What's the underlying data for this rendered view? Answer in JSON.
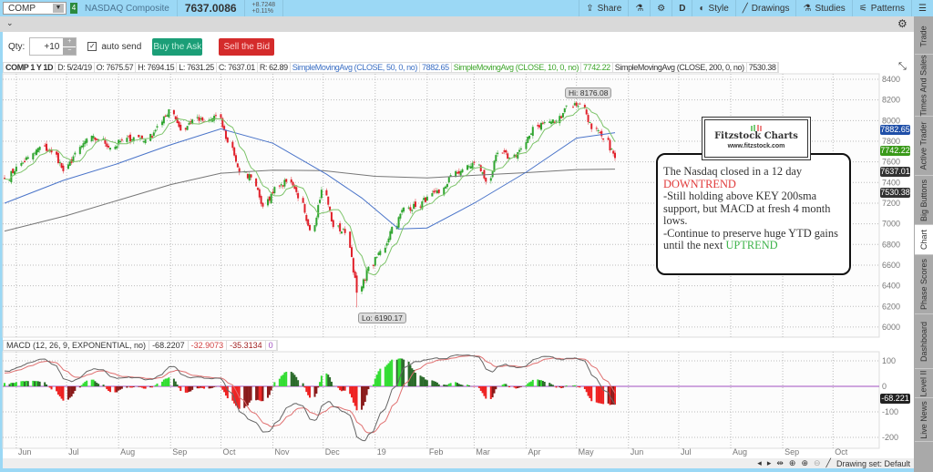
{
  "topbar": {
    "symbol": "COMP",
    "name": "NASDAQ Composite",
    "last": "7637.0086",
    "change": "+8.7248",
    "change_pct": "+0.11%",
    "tools": [
      {
        "label": "Share",
        "icon": "share-icon"
      },
      {
        "label": "",
        "icon": "flask-icon"
      },
      {
        "label": "",
        "icon": "gear-icon"
      },
      {
        "label": "D",
        "icon": "timeframe"
      },
      {
        "label": "Style",
        "icon": "style-icon"
      },
      {
        "label": "Drawings",
        "icon": "pencil-icon"
      },
      {
        "label": "Studies",
        "icon": "flask-icon"
      },
      {
        "label": "Patterns",
        "icon": "patterns-icon"
      },
      {
        "label": "☰",
        "icon": "menu-icon"
      }
    ]
  },
  "trade": {
    "qty_label": "Qty:",
    "qty": "+10",
    "auto_send": "auto send",
    "buy": "Buy the Ask",
    "sell": "Sell the Bid"
  },
  "study_header": {
    "title": "COMP 1 Y 1D",
    "date": "D: 5/24/19",
    "open": "O: 7675.57",
    "high": "H: 7694.15",
    "low": "L: 7631.25",
    "close": "C: 7637.01",
    "range": "R: 62.89",
    "sma50_label": "SimpleMovingAvg (CLOSE, 50, 0, no)",
    "sma50": "7882.65",
    "sma10_label": "SimpleMovingAvg (CLOSE, 10, 0, no)",
    "sma10": "7742.22",
    "sma200_label": "SimpleMovingAvg (CLOSE, 200, 0, no)",
    "sma200": "7530.38"
  },
  "macd_header": {
    "label": "MACD (12, 26, 9, EXPONENTIAL, no)",
    "value": "-68.2207",
    "avg": "-32.9073",
    "diff": "-35.3134",
    "zero": "0"
  },
  "badges": {
    "sma50": "7882.65",
    "sma10": "7742.22",
    "close": "7637.01",
    "sma200": "7530.38",
    "macd": "-68.221"
  },
  "annotations": {
    "hi": "Hi: 8176.08",
    "lo": "Lo: 6190.17"
  },
  "logo": {
    "title": "Fitzstock Charts",
    "url": "www.fitzstock.com"
  },
  "note": {
    "l1": "The Nasdaq closed in a 12 day ",
    "l1_red": "DOWNTREND",
    "l2": "-Still holding above KEY 200sma support, but MACD at fresh 4 month lows.",
    "l3": "-Continue to preserve huge YTD gains until the next ",
    "l3_green": "UPTREND"
  },
  "sidebar": [
    "Trade",
    "Times And Sales",
    "Active Trader",
    "Big Buttons",
    "Chart",
    "Phase Scores",
    "Dashboard",
    "Level II",
    "Live News"
  ],
  "bottom": {
    "drawing_set": "Drawing set: Default"
  },
  "colors": {
    "up": "#2fa52f",
    "down": "#e0202a",
    "sma50": "#4a74c9",
    "sma10": "#7dc46a",
    "sma200": "#777777",
    "macd": "#666666",
    "signal": "#e07070",
    "zero": "#a050c0",
    "topbar": "#9bd8f5"
  },
  "chart_data": [
    {
      "type": "candlestick",
      "title": "COMP 1 Y 1D",
      "y_ticks": [
        8400,
        8200,
        8000,
        7800,
        7600,
        7400,
        7200,
        7000,
        6800,
        6600,
        6400,
        6200,
        6000
      ],
      "ylim": [
        6000,
        8400
      ],
      "x_range": [
        "2018-05-25",
        "2019-10-31"
      ],
      "x_ticks": [
        [
          "2018-06-01",
          "Jun"
        ],
        [
          "2018-07-01",
          "Jul"
        ],
        [
          "2018-08-01",
          "Aug"
        ],
        [
          "2018-09-01",
          "Sep"
        ],
        [
          "2018-10-01",
          "Oct"
        ],
        [
          "2018-11-01",
          "Nov"
        ],
        [
          "2018-12-01",
          "Dec"
        ],
        [
          "2019-01-01",
          "19"
        ],
        [
          "2019-02-01",
          "Feb"
        ],
        [
          "2019-03-01",
          "Mar"
        ],
        [
          "2019-04-01",
          "Apr"
        ],
        [
          "2019-05-01",
          "May"
        ],
        [
          "2019-06-01",
          "Jun"
        ],
        [
          "2019-07-01",
          "Jul"
        ],
        [
          "2019-08-01",
          "Aug"
        ],
        [
          "2019-09-01",
          "Sep"
        ],
        [
          "2019-10-01",
          "Oct"
        ]
      ],
      "weekly_closes": [
        [
          "2018-05-25",
          7434
        ],
        [
          "2018-06-01",
          7554
        ],
        [
          "2018-06-08",
          7645
        ],
        [
          "2018-06-15",
          7746
        ],
        [
          "2018-06-22",
          7692
        ],
        [
          "2018-06-29",
          7510
        ],
        [
          "2018-07-06",
          7688
        ],
        [
          "2018-07-13",
          7825
        ],
        [
          "2018-07-20",
          7820
        ],
        [
          "2018-07-27",
          7737
        ],
        [
          "2018-08-03",
          7812
        ],
        [
          "2018-08-10",
          7839
        ],
        [
          "2018-08-17",
          7816
        ],
        [
          "2018-08-24",
          7946
        ],
        [
          "2018-08-31",
          8109
        ],
        [
          "2018-09-07",
          7903
        ],
        [
          "2018-09-14",
          8010
        ],
        [
          "2018-09-21",
          7986
        ],
        [
          "2018-09-28",
          8046
        ],
        [
          "2018-10-05",
          7788
        ],
        [
          "2018-10-12",
          7497
        ],
        [
          "2018-10-19",
          7449
        ],
        [
          "2018-10-26",
          7167
        ],
        [
          "2018-11-02",
          7357
        ],
        [
          "2018-11-09",
          7406
        ],
        [
          "2018-11-16",
          7247
        ],
        [
          "2018-11-23",
          6938
        ],
        [
          "2018-11-30",
          7330
        ],
        [
          "2018-12-07",
          6969
        ],
        [
          "2018-12-14",
          6910
        ],
        [
          "2018-12-21",
          6333
        ],
        [
          "2018-12-28",
          6584
        ],
        [
          "2019-01-04",
          6738
        ],
        [
          "2019-01-11",
          6971
        ],
        [
          "2019-01-18",
          7157
        ],
        [
          "2019-01-25",
          7164
        ],
        [
          "2019-02-01",
          7263
        ],
        [
          "2019-02-08",
          7298
        ],
        [
          "2019-02-15",
          7472
        ],
        [
          "2019-02-22",
          7527
        ],
        [
          "2019-03-01",
          7595
        ],
        [
          "2019-03-08",
          7408
        ],
        [
          "2019-03-15",
          7688
        ],
        [
          "2019-03-22",
          7642
        ],
        [
          "2019-03-29",
          7729
        ],
        [
          "2019-04-05",
          7939
        ],
        [
          "2019-04-12",
          7984
        ],
        [
          "2019-04-18",
          7998
        ],
        [
          "2019-04-26",
          8146
        ],
        [
          "2019-05-03",
          8164
        ],
        [
          "2019-05-10",
          7917
        ],
        [
          "2019-05-17",
          7816
        ],
        [
          "2019-05-24",
          7637
        ]
      ],
      "sma50": [
        [
          "2018-05-25",
          7200
        ],
        [
          "2018-06-29",
          7420
        ],
        [
          "2018-07-31",
          7580
        ],
        [
          "2018-08-31",
          7760
        ],
        [
          "2018-10-01",
          7920
        ],
        [
          "2018-11-01",
          7780
        ],
        [
          "2018-12-03",
          7480
        ],
        [
          "2018-12-24",
          7250
        ],
        [
          "2019-01-15",
          6950
        ],
        [
          "2019-02-01",
          6960
        ],
        [
          "2019-03-01",
          7200
        ],
        [
          "2019-04-01",
          7500
        ],
        [
          "2019-05-01",
          7830
        ],
        [
          "2019-05-24",
          7883
        ]
      ],
      "sma200": [
        [
          "2018-05-25",
          6930
        ],
        [
          "2018-07-01",
          7080
        ],
        [
          "2018-08-01",
          7230
        ],
        [
          "2018-09-01",
          7380
        ],
        [
          "2018-10-01",
          7490
        ],
        [
          "2018-11-01",
          7520
        ],
        [
          "2018-12-01",
          7515
        ],
        [
          "2019-01-01",
          7460
        ],
        [
          "2019-02-01",
          7445
        ],
        [
          "2019-03-01",
          7470
        ],
        [
          "2019-04-01",
          7495
        ],
        [
          "2019-05-01",
          7525
        ],
        [
          "2019-05-24",
          7530
        ]
      ],
      "hi": 8176.08,
      "lo": 6190.17
    },
    {
      "type": "macd",
      "title": "MACD (12, 26, 9, EXPONENTIAL, no)",
      "y_ticks": [
        100,
        0,
        -100,
        -200
      ],
      "ylim": [
        -240,
        170
      ],
      "last": -68.221
    }
  ]
}
